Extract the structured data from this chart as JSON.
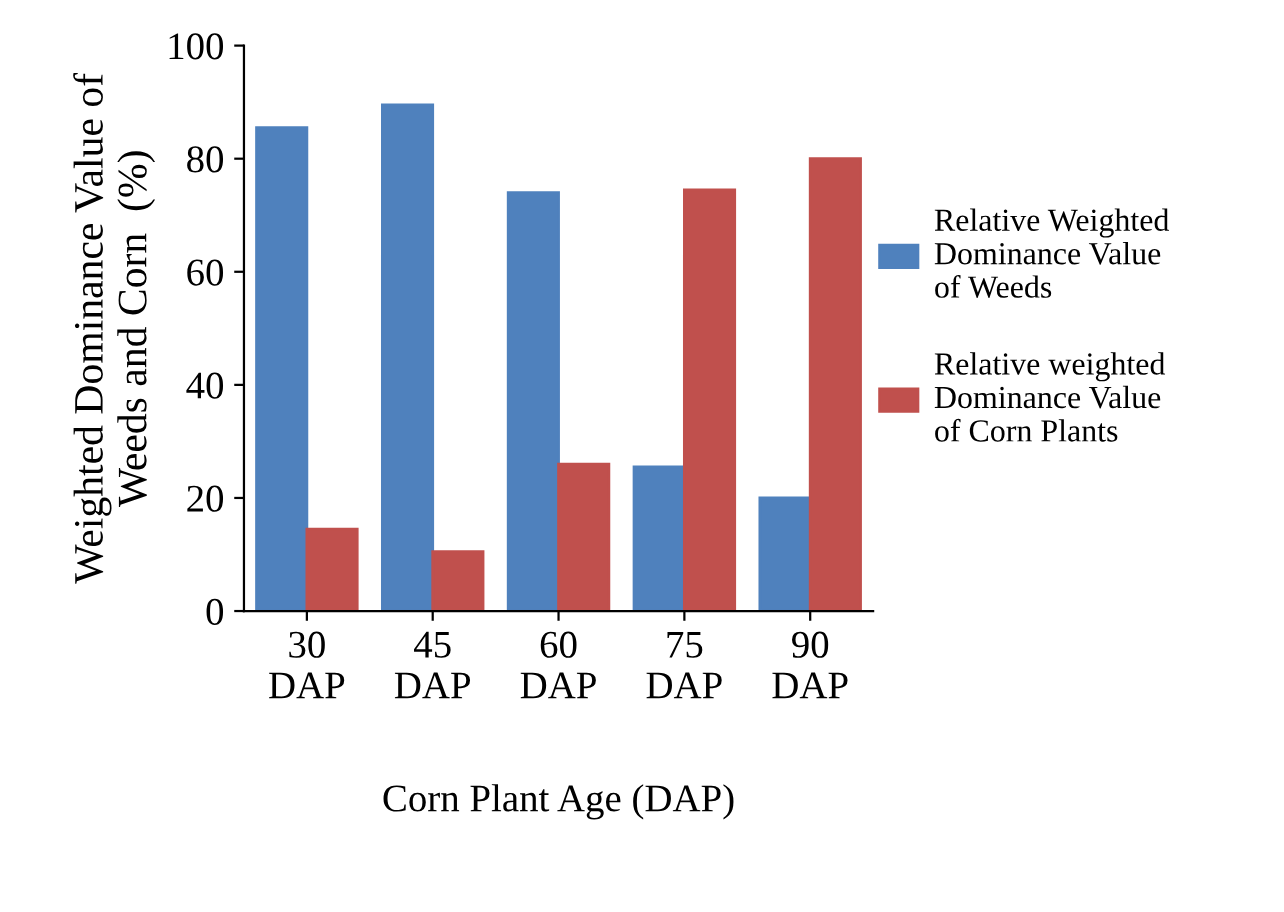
{
  "chart_data": {
    "type": "bar",
    "xlabel": "Corn Plant Age (DAP)",
    "ylabel": "Weighted Dominance Value of\nWeeds and Corn  (%)",
    "categories": [
      "30\nDAP",
      "45\nDAP",
      "60\nDAP",
      "75\nDAP",
      "90\nDAP"
    ],
    "series": [
      {
        "name": "Relative Weighted\nDominance Value\nof Weeds",
        "color": "#4f81bd",
        "values": [
          85.5,
          89.5,
          74,
          25.5,
          20
        ]
      },
      {
        "name": "Relative weighted\nDominance Value\nof Corn Plants",
        "color": "#c0504d",
        "values": [
          14.5,
          10.5,
          26,
          74.5,
          80
        ]
      }
    ],
    "ylim": [
      0,
      100
    ],
    "yticks": [
      0,
      20,
      40,
      60,
      80,
      100
    ],
    "grid": false,
    "legend": "right"
  }
}
